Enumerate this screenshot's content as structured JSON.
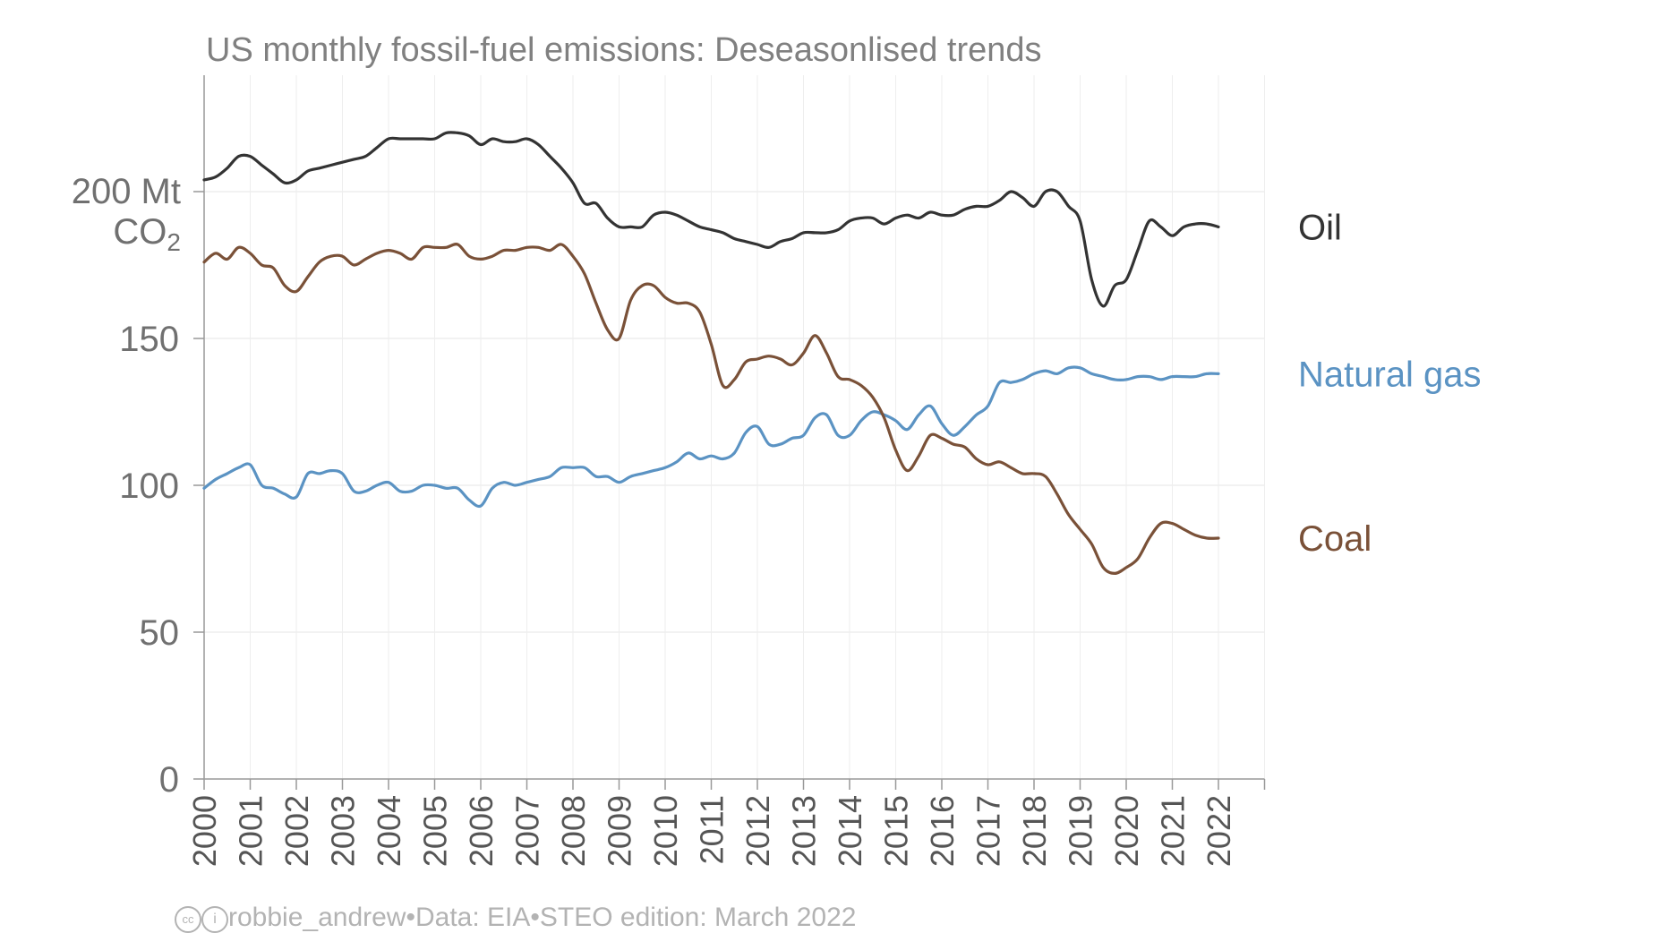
{
  "chart_data": {
    "type": "line",
    "title": "US monthly fossil-fuel emissions: Deseasonlised trends",
    "ylabel_top": "200 Mt",
    "ylabel_unit": "CO",
    "ylabel_unit_sub": "2",
    "ylim": [
      0,
      240
    ],
    "xlim": [
      2000,
      2023
    ],
    "yticks": [
      0,
      50,
      100,
      150
    ],
    "ytick_labels": [
      "0",
      "50",
      "100",
      "150"
    ],
    "xticks": [
      "2000",
      "2001",
      "2002",
      "2003",
      "2004",
      "2005",
      "2006",
      "2007",
      "2008",
      "2009",
      "2010",
      "2011",
      "2012",
      "2013",
      "2014",
      "2015",
      "2016",
      "2017",
      "2018",
      "2019",
      "2020",
      "2021",
      "2022"
    ],
    "grid": true,
    "legend": "direct labels at line ends (right)",
    "series": [
      {
        "name": "Oil",
        "color": "#333333",
        "points": [
          [
            2000,
            204
          ],
          [
            2000.25,
            205
          ],
          [
            2000.5,
            208
          ],
          [
            2000.75,
            212
          ],
          [
            2001,
            212
          ],
          [
            2001.25,
            209
          ],
          [
            2001.5,
            206
          ],
          [
            2001.75,
            203
          ],
          [
            2002,
            204
          ],
          [
            2002.25,
            207
          ],
          [
            2002.5,
            208
          ],
          [
            2002.75,
            209
          ],
          [
            2003,
            210
          ],
          [
            2003.25,
            211
          ],
          [
            2003.5,
            212
          ],
          [
            2003.75,
            215
          ],
          [
            2004,
            218
          ],
          [
            2004.25,
            218
          ],
          [
            2004.5,
            218
          ],
          [
            2004.75,
            218
          ],
          [
            2005,
            218
          ],
          [
            2005.25,
            220
          ],
          [
            2005.5,
            220
          ],
          [
            2005.75,
            219
          ],
          [
            2006,
            216
          ],
          [
            2006.25,
            218
          ],
          [
            2006.5,
            217
          ],
          [
            2006.75,
            217
          ],
          [
            2007,
            218
          ],
          [
            2007.25,
            216
          ],
          [
            2007.5,
            212
          ],
          [
            2007.75,
            208
          ],
          [
            2008,
            203
          ],
          [
            2008.25,
            196
          ],
          [
            2008.5,
            196
          ],
          [
            2008.75,
            191
          ],
          [
            2009,
            188
          ],
          [
            2009.25,
            188
          ],
          [
            2009.5,
            188
          ],
          [
            2009.75,
            192
          ],
          [
            2010,
            193
          ],
          [
            2010.25,
            192
          ],
          [
            2010.5,
            190
          ],
          [
            2010.75,
            188
          ],
          [
            2011,
            187
          ],
          [
            2011.25,
            186
          ],
          [
            2011.5,
            184
          ],
          [
            2011.75,
            183
          ],
          [
            2012,
            182
          ],
          [
            2012.25,
            181
          ],
          [
            2012.5,
            183
          ],
          [
            2012.75,
            184
          ],
          [
            2013,
            186
          ],
          [
            2013.25,
            186
          ],
          [
            2013.5,
            186
          ],
          [
            2013.75,
            187
          ],
          [
            2014,
            190
          ],
          [
            2014.25,
            191
          ],
          [
            2014.5,
            191
          ],
          [
            2014.75,
            189
          ],
          [
            2015,
            191
          ],
          [
            2015.25,
            192
          ],
          [
            2015.5,
            191
          ],
          [
            2015.75,
            193
          ],
          [
            2016,
            192
          ],
          [
            2016.25,
            192
          ],
          [
            2016.5,
            194
          ],
          [
            2016.75,
            195
          ],
          [
            2017,
            195
          ],
          [
            2017.25,
            197
          ],
          [
            2017.5,
            200
          ],
          [
            2017.75,
            198
          ],
          [
            2018,
            195
          ],
          [
            2018.25,
            200
          ],
          [
            2018.5,
            200
          ],
          [
            2018.75,
            195
          ],
          [
            2019,
            190
          ],
          [
            2019.25,
            170
          ],
          [
            2019.5,
            161
          ],
          [
            2019.75,
            168
          ],
          [
            2020,
            170
          ],
          [
            2020.25,
            180
          ],
          [
            2020.5,
            190
          ],
          [
            2020.75,
            188
          ],
          [
            2021,
            185
          ],
          [
            2021.25,
            188
          ],
          [
            2021.5,
            189
          ],
          [
            2021.75,
            189
          ],
          [
            2022,
            188
          ]
        ]
      },
      {
        "name": "Natural gas",
        "color": "#5b93c3",
        "points": [
          [
            2000,
            99
          ],
          [
            2000.25,
            102
          ],
          [
            2000.5,
            104
          ],
          [
            2000.75,
            106
          ],
          [
            2001,
            107
          ],
          [
            2001.25,
            100
          ],
          [
            2001.5,
            99
          ],
          [
            2001.75,
            97
          ],
          [
            2002,
            96
          ],
          [
            2002.25,
            104
          ],
          [
            2002.5,
            104
          ],
          [
            2002.75,
            105
          ],
          [
            2003,
            104
          ],
          [
            2003.25,
            98
          ],
          [
            2003.5,
            98
          ],
          [
            2003.75,
            100
          ],
          [
            2004,
            101
          ],
          [
            2004.25,
            98
          ],
          [
            2004.5,
            98
          ],
          [
            2004.75,
            100
          ],
          [
            2005,
            100
          ],
          [
            2005.25,
            99
          ],
          [
            2005.5,
            99
          ],
          [
            2005.75,
            95
          ],
          [
            2006,
            93
          ],
          [
            2006.25,
            99
          ],
          [
            2006.5,
            101
          ],
          [
            2006.75,
            100
          ],
          [
            2007,
            101
          ],
          [
            2007.25,
            102
          ],
          [
            2007.5,
            103
          ],
          [
            2007.75,
            106
          ],
          [
            2008,
            106
          ],
          [
            2008.25,
            106
          ],
          [
            2008.5,
            103
          ],
          [
            2008.75,
            103
          ],
          [
            2009,
            101
          ],
          [
            2009.25,
            103
          ],
          [
            2009.5,
            104
          ],
          [
            2009.75,
            105
          ],
          [
            2010,
            106
          ],
          [
            2010.25,
            108
          ],
          [
            2010.5,
            111
          ],
          [
            2010.75,
            109
          ],
          [
            2011,
            110
          ],
          [
            2011.25,
            109
          ],
          [
            2011.5,
            111
          ],
          [
            2011.75,
            118
          ],
          [
            2012,
            120
          ],
          [
            2012.25,
            114
          ],
          [
            2012.5,
            114
          ],
          [
            2012.75,
            116
          ],
          [
            2013,
            117
          ],
          [
            2013.25,
            123
          ],
          [
            2013.5,
            124
          ],
          [
            2013.75,
            117
          ],
          [
            2014,
            117
          ],
          [
            2014.25,
            122
          ],
          [
            2014.5,
            125
          ],
          [
            2014.75,
            124
          ],
          [
            2015,
            122
          ],
          [
            2015.25,
            119
          ],
          [
            2015.5,
            124
          ],
          [
            2015.75,
            127
          ],
          [
            2016,
            121
          ],
          [
            2016.25,
            117
          ],
          [
            2016.5,
            120
          ],
          [
            2016.75,
            124
          ],
          [
            2017,
            127
          ],
          [
            2017.25,
            135
          ],
          [
            2017.5,
            135
          ],
          [
            2017.75,
            136
          ],
          [
            2018,
            138
          ],
          [
            2018.25,
            139
          ],
          [
            2018.5,
            138
          ],
          [
            2018.75,
            140
          ],
          [
            2019,
            140
          ],
          [
            2019.25,
            138
          ],
          [
            2019.5,
            137
          ],
          [
            2019.75,
            136
          ],
          [
            2020,
            136
          ],
          [
            2020.25,
            137
          ],
          [
            2020.5,
            137
          ],
          [
            2020.75,
            136
          ],
          [
            2021,
            137
          ],
          [
            2021.25,
            137
          ],
          [
            2021.5,
            137
          ],
          [
            2021.75,
            138
          ],
          [
            2022,
            138
          ]
        ]
      },
      {
        "name": "Coal",
        "color": "#7a5138",
        "points": [
          [
            2000,
            176
          ],
          [
            2000.25,
            179
          ],
          [
            2000.5,
            177
          ],
          [
            2000.75,
            181
          ],
          [
            2001,
            179
          ],
          [
            2001.25,
            175
          ],
          [
            2001.5,
            174
          ],
          [
            2001.75,
            168
          ],
          [
            2002,
            166
          ],
          [
            2002.25,
            171
          ],
          [
            2002.5,
            176
          ],
          [
            2002.75,
            178
          ],
          [
            2003,
            178
          ],
          [
            2003.25,
            175
          ],
          [
            2003.5,
            177
          ],
          [
            2003.75,
            179
          ],
          [
            2004,
            180
          ],
          [
            2004.25,
            179
          ],
          [
            2004.5,
            177
          ],
          [
            2004.75,
            181
          ],
          [
            2005,
            181
          ],
          [
            2005.25,
            181
          ],
          [
            2005.5,
            182
          ],
          [
            2005.75,
            178
          ],
          [
            2006,
            177
          ],
          [
            2006.25,
            178
          ],
          [
            2006.5,
            180
          ],
          [
            2006.75,
            180
          ],
          [
            2007,
            181
          ],
          [
            2007.25,
            181
          ],
          [
            2007.5,
            180
          ],
          [
            2007.75,
            182
          ],
          [
            2008,
            178
          ],
          [
            2008.25,
            172
          ],
          [
            2008.5,
            162
          ],
          [
            2008.75,
            153
          ],
          [
            2009,
            150
          ],
          [
            2009.25,
            163
          ],
          [
            2009.5,
            168
          ],
          [
            2009.75,
            168
          ],
          [
            2010,
            164
          ],
          [
            2010.25,
            162
          ],
          [
            2010.5,
            162
          ],
          [
            2010.75,
            159
          ],
          [
            2011,
            148
          ],
          [
            2011.25,
            134
          ],
          [
            2011.5,
            136
          ],
          [
            2011.75,
            142
          ],
          [
            2012,
            143
          ],
          [
            2012.25,
            144
          ],
          [
            2012.5,
            143
          ],
          [
            2012.75,
            141
          ],
          [
            2013,
            145
          ],
          [
            2013.25,
            151
          ],
          [
            2013.5,
            145
          ],
          [
            2013.75,
            137
          ],
          [
            2014,
            136
          ],
          [
            2014.25,
            134
          ],
          [
            2014.5,
            130
          ],
          [
            2014.75,
            123
          ],
          [
            2015,
            112
          ],
          [
            2015.25,
            105
          ],
          [
            2015.5,
            110
          ],
          [
            2015.75,
            117
          ],
          [
            2016,
            116
          ],
          [
            2016.25,
            114
          ],
          [
            2016.5,
            113
          ],
          [
            2016.75,
            109
          ],
          [
            2017,
            107
          ],
          [
            2017.25,
            108
          ],
          [
            2017.5,
            106
          ],
          [
            2017.75,
            104
          ],
          [
            2018,
            104
          ],
          [
            2018.25,
            103
          ],
          [
            2018.5,
            97
          ],
          [
            2018.75,
            90
          ],
          [
            2019,
            85
          ],
          [
            2019.25,
            80
          ],
          [
            2019.5,
            72
          ],
          [
            2019.75,
            70
          ],
          [
            2020,
            72
          ],
          [
            2020.25,
            75
          ],
          [
            2020.5,
            82
          ],
          [
            2020.75,
            87
          ],
          [
            2021,
            87
          ],
          [
            2021.25,
            85
          ],
          [
            2021.5,
            83
          ],
          [
            2021.75,
            82
          ],
          [
            2022,
            82
          ]
        ]
      }
    ]
  },
  "footer": {
    "cc_icon": "cc",
    "by_icon": "i",
    "author": "robbie_andrew",
    "separator": "•",
    "data_source": "Data: EIA",
    "edition": "STEO edition: March 2022"
  }
}
